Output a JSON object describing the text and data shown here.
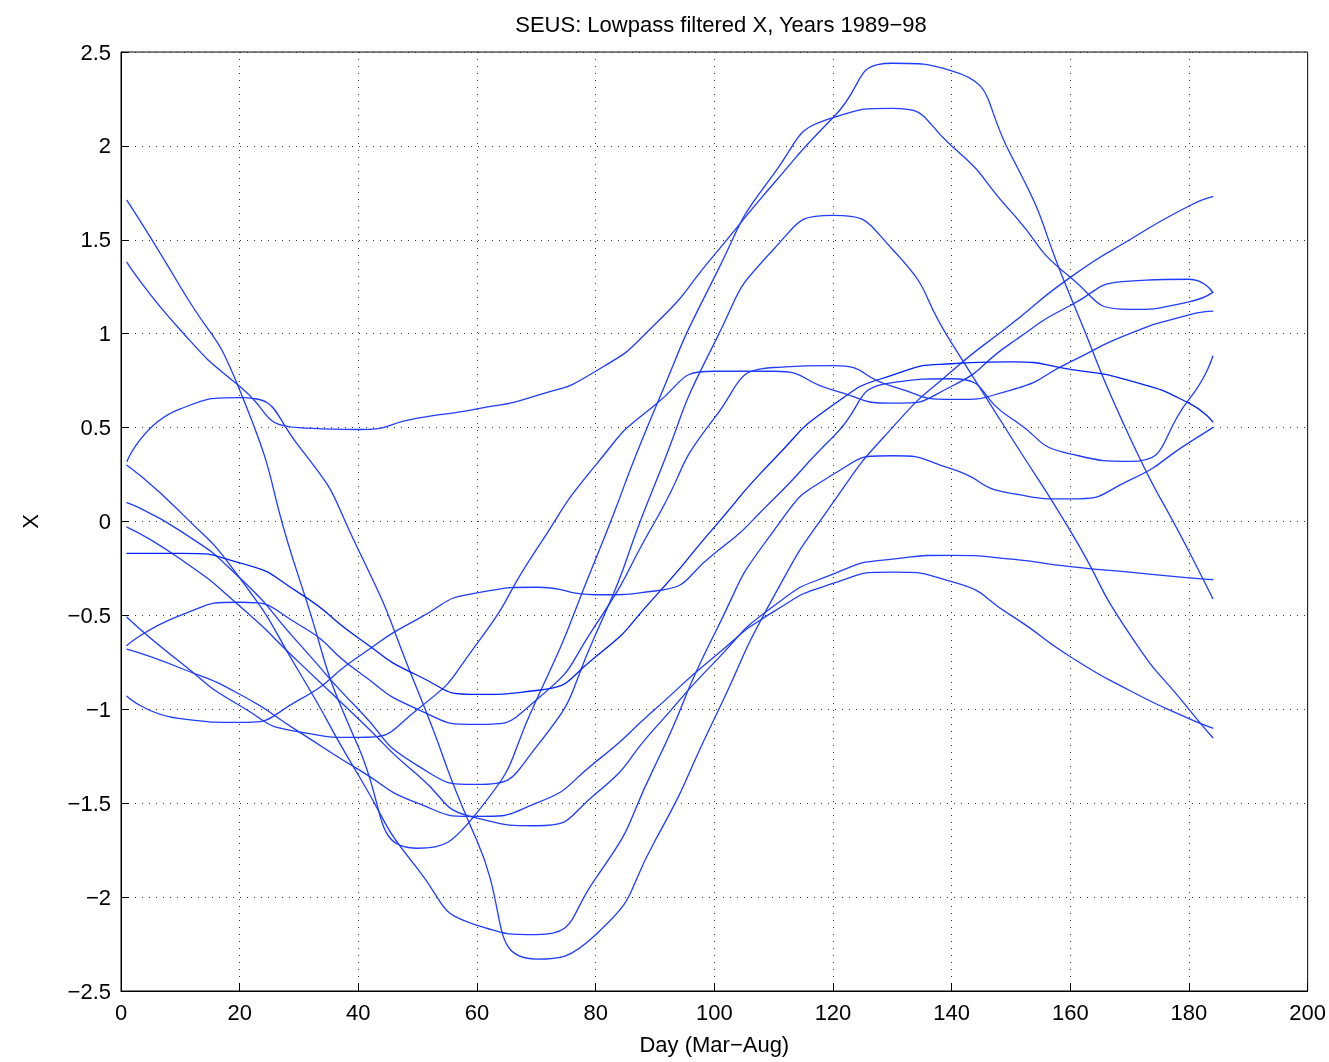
{
  "chart_data": {
    "type": "line",
    "title": "SEUS: Lowpass filtered X, Years 1989−98",
    "xlabel": "Day (Mar−Aug)",
    "ylabel": "X",
    "x": [
      1,
      10,
      20,
      30,
      40,
      50,
      60,
      70,
      80,
      90,
      100,
      110,
      120,
      130,
      140,
      150,
      160,
      170,
      180,
      184
    ],
    "series": [
      {
        "color": "#1f3cff",
        "values": [
          1.38,
          1.02,
          0.72,
          0.5,
          0.49,
          0.55,
          0.6,
          0.67,
          0.8,
          1.05,
          1.42,
          1.8,
          2.15,
          2.44,
          2.4,
          1.95,
          1.2,
          0.45,
          -0.16,
          -0.41
        ]
      },
      {
        "color": "#1f3cff",
        "values": [
          1.71,
          1.25,
          0.7,
          -0.3,
          -1.2,
          -1.74,
          -1.55,
          -0.95,
          -0.2,
          0.6,
          1.3,
          1.85,
          2.15,
          2.2,
          2.0,
          1.65,
          1.3,
          1.13,
          1.17,
          1.22
        ]
      },
      {
        "color": "#1f3cff",
        "values": [
          -0.93,
          -1.05,
          -1.07,
          -0.95,
          -0.72,
          -0.52,
          -0.38,
          -0.35,
          -0.39,
          -0.37,
          -0.17,
          0.12,
          0.45,
          0.74,
          0.76,
          0.55,
          0.36,
          0.32,
          0.65,
          0.88
        ]
      },
      {
        "color": "#1f3cff",
        "values": [
          -0.51,
          -0.75,
          -0.98,
          -1.12,
          -1.15,
          -1.0,
          -0.65,
          -0.15,
          0.3,
          0.62,
          0.8,
          0.8,
          0.7,
          0.63,
          0.72,
          0.95,
          1.15,
          1.28,
          1.29,
          1.22
        ]
      },
      {
        "color": "#1f3cff",
        "values": [
          -0.66,
          -0.5,
          -0.43,
          -0.55,
          -0.8,
          -1.0,
          -1.08,
          -0.95,
          -0.55,
          0.0,
          0.55,
          0.82,
          0.83,
          0.72,
          0.65,
          0.7,
          0.85,
          1.0,
          1.1,
          1.12
        ]
      },
      {
        "color": "#1f3cff",
        "values": [
          0.1,
          -0.05,
          -0.3,
          -0.65,
          -1.0,
          -1.3,
          -1.4,
          -1.2,
          -0.6,
          0.2,
          0.95,
          1.45,
          1.63,
          1.45,
          0.95,
          0.45,
          -0.05,
          -0.6,
          -1.0,
          -1.15
        ]
      },
      {
        "color": "#1f3cff",
        "values": [
          -0.03,
          -0.2,
          -0.45,
          -0.75,
          -1.05,
          -1.35,
          -1.58,
          -1.62,
          -1.45,
          -1.1,
          -0.75,
          -0.45,
          -0.28,
          -0.2,
          -0.18,
          -0.2,
          -0.24,
          -0.27,
          -0.3,
          -0.31
        ]
      },
      {
        "color": "#1f3cff",
        "values": [
          -0.68,
          -0.78,
          -0.92,
          -1.12,
          -1.32,
          -1.5,
          -1.57,
          -1.5,
          -1.28,
          -1.0,
          -0.72,
          -0.48,
          -0.33,
          -0.27,
          -0.32,
          -0.5,
          -0.72,
          -0.9,
          -1.05,
          -1.1
        ]
      },
      {
        "color": "#1f3cff",
        "values": [
          0.32,
          0.6,
          0.66,
          0.4,
          -0.15,
          -0.9,
          -1.7,
          -2.33,
          -2.2,
          -1.7,
          -1.05,
          -0.4,
          0.1,
          0.5,
          0.8,
          1.05,
          1.3,
          1.5,
          1.68,
          1.73
        ]
      },
      {
        "color": "#1f3cff",
        "values": [
          0.3,
          0.05,
          -0.3,
          -0.8,
          -1.35,
          -1.85,
          -2.15,
          -2.2,
          -1.9,
          -1.3,
          -0.6,
          -0.05,
          0.25,
          0.35,
          0.28,
          0.15,
          0.12,
          0.22,
          0.42,
          0.5
        ]
      },
      {
        "color": "#0022ff",
        "values": [
          -0.17,
          -0.17,
          -0.22,
          -0.38,
          -0.62,
          -0.82,
          -0.92,
          -0.9,
          -0.72,
          -0.4,
          -0.03,
          0.33,
          0.62,
          0.78,
          0.84,
          0.85,
          0.81,
          0.75,
          0.63,
          0.53
        ]
      }
    ],
    "xlim": [
      0,
      200
    ],
    "xticks": [
      0,
      20,
      40,
      60,
      80,
      100,
      120,
      140,
      160,
      180,
      200
    ],
    "ylim": [
      -2.5,
      2.5
    ],
    "yticks": [
      {
        "value": -2.5,
        "label": "−2.5"
      },
      {
        "value": -2,
        "label": "−2"
      },
      {
        "value": -1.5,
        "label": "−1.5"
      },
      {
        "value": -1,
        "label": "−1"
      },
      {
        "value": -0.5,
        "label": "−0.5"
      },
      0,
      0.5,
      1,
      1.5,
      2,
      2.5
    ],
    "grid": true,
    "marker": "none",
    "line_style": "solid"
  }
}
